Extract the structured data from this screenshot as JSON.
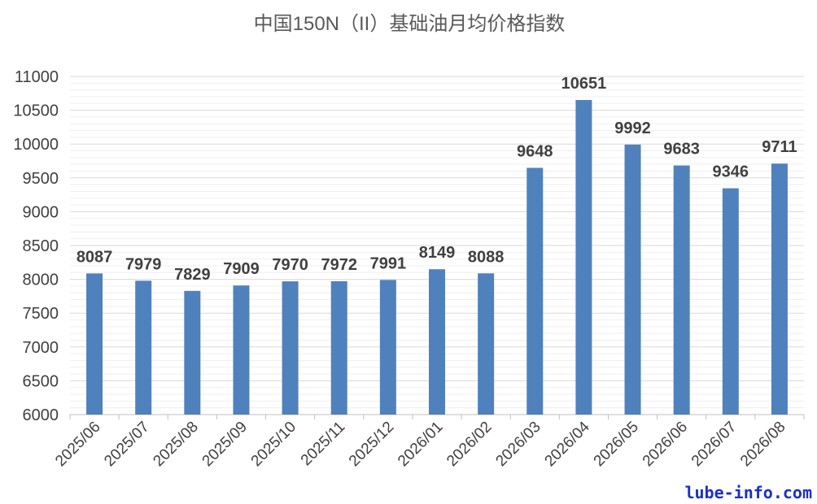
{
  "chart_data": {
    "type": "bar",
    "title": "中国150N（II）基础油月均价格指数",
    "categories": [
      "2025/06",
      "2025/07",
      "2025/08",
      "2025/09",
      "2025/10",
      "2025/11",
      "2025/12",
      "2026/01",
      "2026/02",
      "2026/03",
      "2026/04",
      "2026/05",
      "2026/06",
      "2026/07",
      "2026/08"
    ],
    "values": [
      8087,
      7979,
      7829,
      7909,
      7970,
      7972,
      7991,
      8149,
      8088,
      9648,
      10651,
      9992,
      9683,
      9346,
      9711
    ],
    "ylim": [
      6000,
      11000
    ],
    "yticks": [
      6000,
      6500,
      7000,
      7500,
      8000,
      8500,
      9000,
      9500,
      10000,
      10500,
      11000
    ],
    "xlabel": "",
    "ylabel": "",
    "grid": true,
    "bar_color": "#4f81bd",
    "data_labels": true
  },
  "watermark": "lube-info.com"
}
